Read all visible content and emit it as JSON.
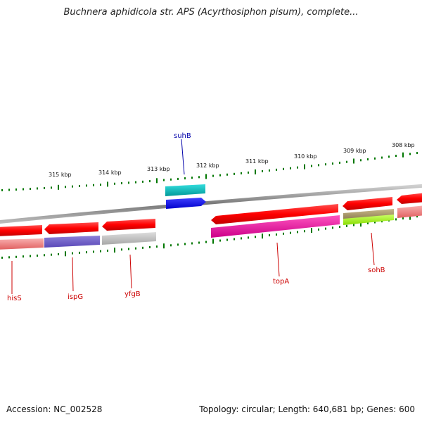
{
  "header": {
    "title": "Buchnera aphidicola str. APS (Acyrthosiphon pisum), complete..."
  },
  "footer": {
    "accession": "Accession: NC_002528",
    "summary": "Topology: circular; Length: 640,681 bp; Genes: 600"
  },
  "ruler": {
    "tick_labels": [
      "315 kbp",
      "314 kbp",
      "313 kbp",
      "312 kbp",
      "311 kbp",
      "310 kbp",
      "309 kbp",
      "308 kbp"
    ]
  },
  "genes": [
    {
      "name": "hisS",
      "color": "#cc0000"
    },
    {
      "name": "ispG",
      "color": "#cc0000"
    },
    {
      "name": "yfgB",
      "color": "#cc0000"
    },
    {
      "name": "suhB",
      "color": "#0000aa"
    },
    {
      "name": "topA",
      "color": "#cc0000"
    },
    {
      "name": "sohB",
      "color": "#cc0000"
    }
  ],
  "colors": {
    "forward_cds": "#0000ff",
    "reverse_cds": "#ff0000",
    "ticks": "#007700"
  }
}
